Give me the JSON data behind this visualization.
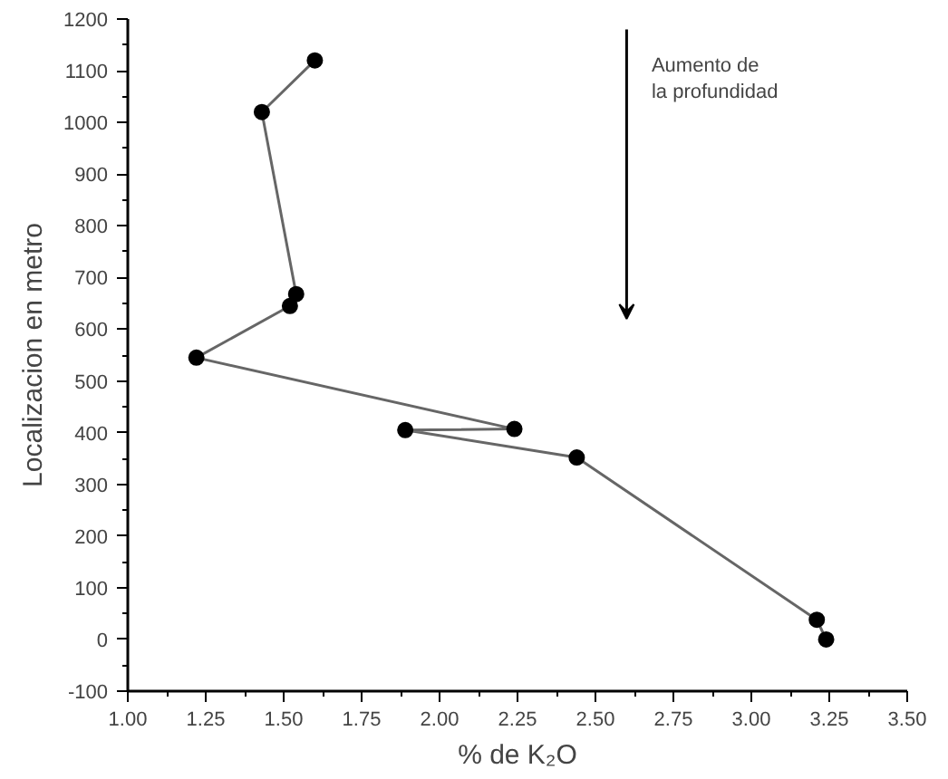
{
  "chart_data": {
    "type": "line",
    "xlabel": "% de K₂O",
    "ylabel": "Localizacion en metro",
    "annotations": [
      "Aumento de\nla profundidad"
    ],
    "x": [
      1.6,
      1.43,
      1.54,
      1.52,
      1.22,
      2.24,
      1.89,
      2.44,
      3.21,
      3.24
    ],
    "series": [
      {
        "color": "#666666",
        "values": [
          1120,
          1020,
          668,
          645,
          545,
          407,
          405,
          352,
          38,
          0
        ]
      }
    ],
    "marker": "circle",
    "line_style": "solid",
    "grid": false,
    "xlim": [
      1.0,
      3.5
    ],
    "xticks": [
      {
        "value": 1.0,
        "label": "1.00"
      },
      1.25,
      {
        "value": 1.5,
        "label": "1.50"
      },
      1.75,
      {
        "value": 2.0,
        "label": "2.00"
      },
      2.25,
      {
        "value": 2.5,
        "label": "2.50"
      },
      2.75,
      {
        "value": 3.0,
        "label": "3.00"
      },
      3.25,
      {
        "value": 3.5,
        "label": "3.50"
      }
    ],
    "ylim": [
      -100,
      1200
    ],
    "yticks": [
      -100,
      0,
      100,
      200,
      300,
      400,
      500,
      600,
      700,
      800,
      900,
      1000,
      1100,
      1200
    ]
  }
}
